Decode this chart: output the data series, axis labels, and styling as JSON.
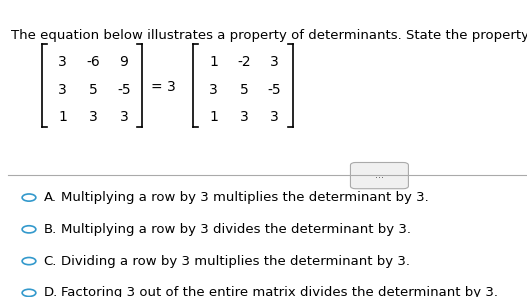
{
  "title": "The equation below illustrates a property of determinants. State the property.",
  "title_color": "#000000",
  "bg_color": "#ffffff",
  "top_bar_color": "#3399cc",
  "left_bar_color": "#cccc00",
  "matrix_left": {
    "rows": [
      [
        "3",
        "-6",
        "9"
      ],
      [
        "3",
        "5",
        "-5"
      ],
      [
        "1",
        "3",
        "3"
      ]
    ]
  },
  "equals_text": "= 3",
  "matrix_right": {
    "rows": [
      [
        "1",
        "-2",
        "3"
      ],
      [
        "3",
        "5",
        "-5"
      ],
      [
        "1",
        "3",
        "3"
      ]
    ]
  },
  "separator_color": "#aaaaaa",
  "dots_text": "...",
  "options": [
    {
      "letter": "A.",
      "text": "Multiplying a row by 3 multiplies the determinant by 3."
    },
    {
      "letter": "B.",
      "text": "Multiplying a row by 3 divides the determinant by 3."
    },
    {
      "letter": "C.",
      "text": "Dividing a row by 3 multiplies the determinant by 3."
    },
    {
      "letter": "D.",
      "text": "Factoring 3 out of the entire matrix divides the determinant by 3."
    }
  ],
  "option_text_color": "#000000",
  "circle_color": "#3399cc",
  "font_size_title": 9.5,
  "font_size_matrix": 10,
  "font_size_options": 9.5
}
